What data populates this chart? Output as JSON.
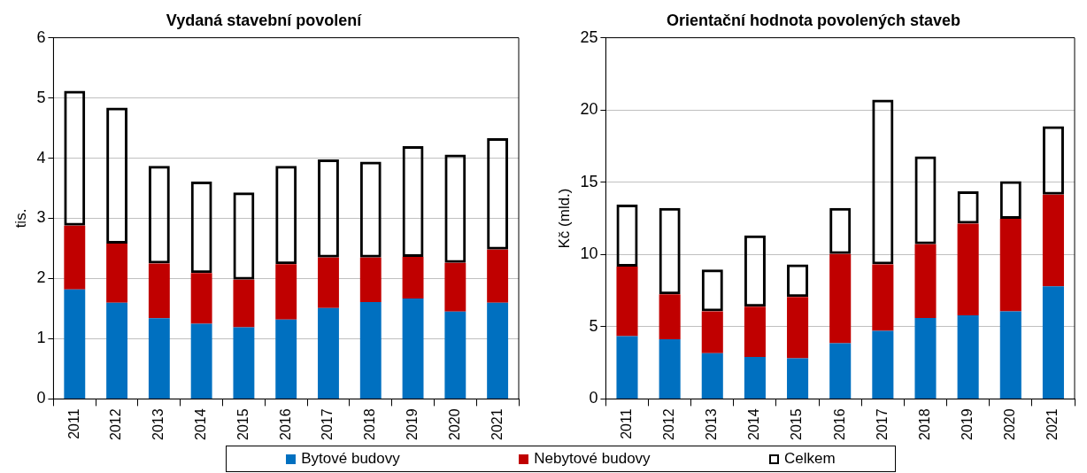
{
  "chart_data": [
    {
      "type": "bar",
      "title": "Vydaná stavební povolení",
      "ylabel": "tis.",
      "categories": [
        "2011",
        "2012",
        "2013",
        "2014",
        "2015",
        "2016",
        "2017",
        "2018",
        "2019",
        "2020",
        "2021"
      ],
      "stacked": true,
      "series": [
        {
          "name": "Bytové budovy",
          "color": "#0070c0",
          "values": [
            1.82,
            1.6,
            1.34,
            1.25,
            1.19,
            1.32,
            1.51,
            1.61,
            1.67,
            1.45,
            1.6
          ]
        },
        {
          "name": "Nebytové budovy",
          "color": "#c00000",
          "values": [
            1.06,
            0.98,
            0.91,
            0.84,
            0.79,
            0.92,
            0.84,
            0.74,
            0.69,
            0.81,
            0.88
          ]
        },
        {
          "name": "Celkem",
          "color": "#000000",
          "values": [
            2.24,
            2.26,
            1.62,
            1.52,
            1.45,
            1.63,
            1.63,
            1.59,
            1.84,
            1.8,
            1.85
          ]
        }
      ],
      "ylim": [
        0,
        6
      ],
      "yticks": [
        0,
        1,
        2,
        3,
        4,
        5,
        6
      ],
      "grid": "y",
      "legend": "bottom"
    },
    {
      "type": "bar",
      "title": "Orientační hodnota povolených staveb",
      "ylabel": "Kč (mld.)",
      "categories": [
        "2011",
        "2012",
        "2013",
        "2014",
        "2015",
        "2016",
        "2017",
        "2018",
        "2019",
        "2020",
        "2021"
      ],
      "stacked": true,
      "series": [
        {
          "name": "Bytové budovy",
          "color": "#0070c0",
          "values": [
            4.34,
            4.13,
            3.16,
            2.9,
            2.82,
            3.85,
            4.72,
            5.6,
            5.78,
            6.06,
            7.8
          ]
        },
        {
          "name": "Nebytové budovy",
          "color": "#c00000",
          "values": [
            4.82,
            3.11,
            2.9,
            3.49,
            4.24,
            6.19,
            4.6,
            5.1,
            6.36,
            6.41,
            6.34
          ]
        },
        {
          "name": "Celkem",
          "color": "#000000",
          "values": [
            4.29,
            5.98,
            2.9,
            4.93,
            2.26,
            3.18,
            11.39,
            6.09,
            2.23,
            2.6,
            4.73
          ]
        }
      ],
      "ylim": [
        0,
        25
      ],
      "yticks": [
        0,
        5,
        10,
        15,
        20,
        25
      ],
      "grid": "y",
      "legend": "bottom"
    }
  ]
}
